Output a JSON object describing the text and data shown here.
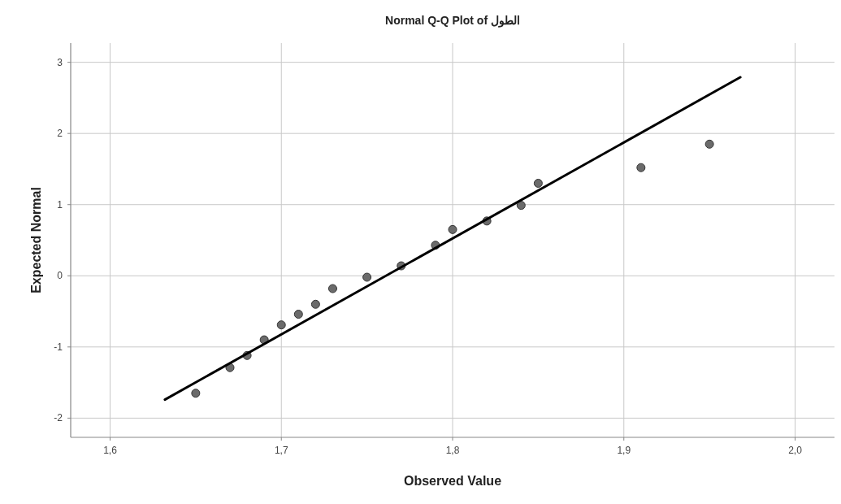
{
  "chart_data": {
    "type": "scatter",
    "title": "Normal Q-Q Plot of الطول",
    "xlabel": "Observed Value",
    "ylabel": "Expected Normal",
    "xlim": [
      1.577,
      2.023
    ],
    "ylim": [
      -2.27,
      3.27
    ],
    "xticks": [
      {
        "value": 1.6,
        "label": "1,6"
      },
      {
        "value": 1.7,
        "label": "1,7"
      },
      {
        "value": 1.8,
        "label": "1,8"
      },
      {
        "value": 1.9,
        "label": "1,9"
      },
      {
        "value": 2.0,
        "label": "2,0"
      }
    ],
    "yticks": [
      -2,
      -1,
      0,
      1,
      2,
      3
    ],
    "grid": true,
    "series": [
      {
        "marker": "circle",
        "color": "#6b6b6b",
        "x": [
          1.65,
          1.67,
          1.68,
          1.69,
          1.7,
          1.71,
          1.72,
          1.73,
          1.75,
          1.77,
          1.79,
          1.8,
          1.82,
          1.84,
          1.85,
          1.91,
          1.95
        ],
        "values": [
          -1.65,
          -1.29,
          -1.12,
          -0.9,
          -0.69,
          -0.54,
          -0.4,
          -0.18,
          -0.02,
          0.14,
          0.43,
          0.65,
          0.77,
          0.99,
          1.3,
          1.52,
          1.85
        ]
      },
      {
        "type": "line",
        "color": "#000000",
        "x": [
          1.632,
          1.968
        ],
        "values": [
          -1.74,
          2.79
        ]
      }
    ]
  }
}
